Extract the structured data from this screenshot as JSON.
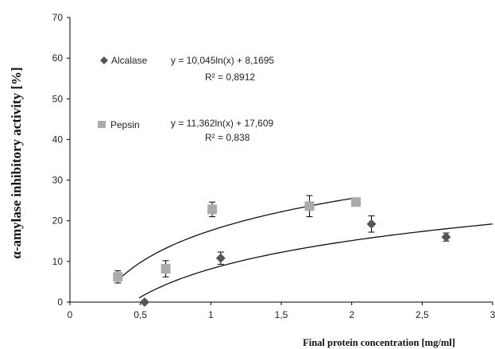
{
  "chart_data": {
    "type": "scatter",
    "title": "",
    "xlabel": "Final protein concentration [mg/ml]",
    "ylabel": "α-amylase inhibitory activity [%]",
    "xlim": [
      0,
      3
    ],
    "ylim": [
      0,
      70
    ],
    "x_ticks": [
      0,
      0.5,
      1,
      1.5,
      2,
      2.5,
      3
    ],
    "x_tick_labels": [
      "0",
      "0,5",
      "1",
      "1,5",
      "2",
      "2,5",
      "3"
    ],
    "y_ticks": [
      0,
      10,
      20,
      30,
      40,
      50,
      60,
      70
    ],
    "y_tick_labels": [
      "0",
      "10",
      "20",
      "30",
      "40",
      "50",
      "60",
      "70"
    ],
    "grid": false,
    "legend_placement": "top-left",
    "series": [
      {
        "name": "Alcalase",
        "marker": "diamond",
        "color": "#555555",
        "x": [
          0.53,
          1.07,
          2.14,
          2.67
        ],
        "y": [
          0,
          10.8,
          19.2,
          16.0
        ],
        "err": [
          0,
          1.5,
          2.0,
          1.0
        ],
        "trend": {
          "a": 10.045,
          "b": 8.1695,
          "x_from": 0.49,
          "x_to": 3.0
        },
        "equation": "y = 10,045ln(x) + 8,1695",
        "r2": "R² = 0,8912"
      },
      {
        "name": "Pepsin",
        "marker": "square",
        "color": "#aaaaaa",
        "x": [
          0.34,
          0.68,
          1.01,
          1.7,
          2.03
        ],
        "y": [
          6.2,
          8.2,
          22.8,
          23.6,
          24.6
        ],
        "err": [
          1.5,
          2.0,
          1.8,
          2.6,
          0
        ],
        "trend": {
          "a": 11.362,
          "b": 17.609,
          "x_from": 0.34,
          "x_to": 2.03
        },
        "equation": "y = 11,362ln(x) + 17,609",
        "r2": "R² = 0,838"
      }
    ]
  }
}
